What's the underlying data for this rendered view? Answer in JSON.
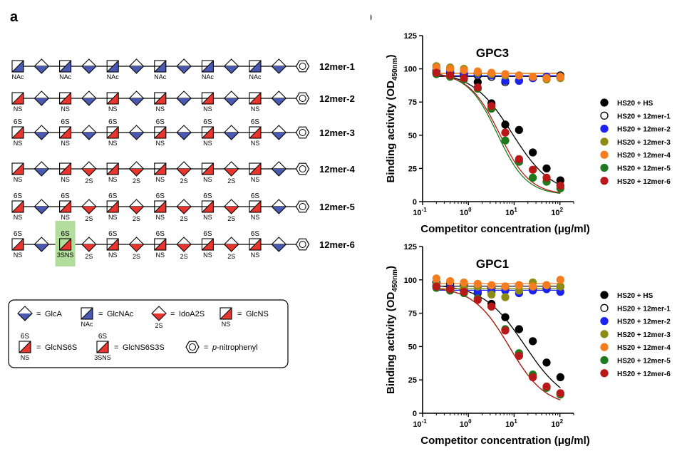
{
  "panels": {
    "a": "a",
    "b": "b"
  },
  "oligos": [
    {
      "label": "12mer-1",
      "residues": [
        {
          "t": "GlcNAc",
          "sub": "NAc"
        },
        {
          "t": "GlcA"
        },
        {
          "t": "GlcNAc",
          "sub": "NAc"
        },
        {
          "t": "GlcA"
        },
        {
          "t": "GlcNAc",
          "sub": "NAc"
        },
        {
          "t": "GlcA"
        },
        {
          "t": "GlcNAc",
          "sub": "NAc"
        },
        {
          "t": "GlcA"
        },
        {
          "t": "GlcNAc",
          "sub": "NAc"
        },
        {
          "t": "GlcA"
        },
        {
          "t": "GlcNAc",
          "sub": "NAc"
        },
        {
          "t": "GlcA"
        },
        {
          "t": "pNP"
        }
      ]
    },
    {
      "label": "12mer-2",
      "residues": [
        {
          "t": "GlcNS",
          "sub": "NS"
        },
        {
          "t": "GlcA"
        },
        {
          "t": "GlcNS",
          "sub": "NS"
        },
        {
          "t": "GlcA"
        },
        {
          "t": "GlcNS",
          "sub": "NS"
        },
        {
          "t": "GlcA"
        },
        {
          "t": "GlcNS",
          "sub": "NS"
        },
        {
          "t": "GlcA"
        },
        {
          "t": "GlcNS",
          "sub": "NS"
        },
        {
          "t": "GlcA"
        },
        {
          "t": "GlcNS",
          "sub": "NS"
        },
        {
          "t": "GlcA"
        },
        {
          "t": "pNP"
        }
      ]
    },
    {
      "label": "12mer-3",
      "residues": [
        {
          "t": "GlcNS",
          "sub": "NS",
          "sup": "6S"
        },
        {
          "t": "GlcA"
        },
        {
          "t": "GlcNS",
          "sub": "NS",
          "sup": "6S"
        },
        {
          "t": "GlcA"
        },
        {
          "t": "GlcNS",
          "sub": "NS",
          "sup": "6S"
        },
        {
          "t": "GlcA"
        },
        {
          "t": "GlcNS",
          "sub": "NS",
          "sup": "6S"
        },
        {
          "t": "GlcA"
        },
        {
          "t": "GlcNS",
          "sub": "NS",
          "sup": "6S"
        },
        {
          "t": "GlcA"
        },
        {
          "t": "GlcNS",
          "sub": "NS",
          "sup": "6S"
        },
        {
          "t": "GlcA"
        },
        {
          "t": "pNP"
        }
      ]
    },
    {
      "label": "12mer-4",
      "residues": [
        {
          "t": "GlcNS",
          "sub": "NS"
        },
        {
          "t": "GlcA"
        },
        {
          "t": "GlcNS",
          "sub": "NS"
        },
        {
          "t": "IdoA2S",
          "sub": "2S"
        },
        {
          "t": "GlcNS",
          "sub": "NS"
        },
        {
          "t": "IdoA2S",
          "sub": "2S"
        },
        {
          "t": "GlcNS",
          "sub": "NS"
        },
        {
          "t": "IdoA2S",
          "sub": "2S"
        },
        {
          "t": "GlcNS",
          "sub": "NS"
        },
        {
          "t": "IdoA2S",
          "sub": "2S"
        },
        {
          "t": "GlcNS",
          "sub": "NS"
        },
        {
          "t": "GlcA"
        },
        {
          "t": "pNP"
        }
      ]
    },
    {
      "label": "12mer-5",
      "residues": [
        {
          "t": "GlcNS",
          "sub": "NS",
          "sup": "6S"
        },
        {
          "t": "GlcA"
        },
        {
          "t": "GlcNS",
          "sub": "NS",
          "sup": "6S"
        },
        {
          "t": "IdoA2S",
          "sub": "2S"
        },
        {
          "t": "GlcNS",
          "sub": "NS",
          "sup": "6S"
        },
        {
          "t": "IdoA2S",
          "sub": "2S"
        },
        {
          "t": "GlcNS",
          "sub": "NS",
          "sup": "6S"
        },
        {
          "t": "IdoA2S",
          "sub": "2S"
        },
        {
          "t": "GlcNS",
          "sub": "NS",
          "sup": "6S"
        },
        {
          "t": "IdoA2S",
          "sub": "2S"
        },
        {
          "t": "GlcNS",
          "sub": "NS",
          "sup": "6S"
        },
        {
          "t": "GlcA"
        },
        {
          "t": "pNP"
        }
      ]
    },
    {
      "label": "12mer-6",
      "residues": [
        {
          "t": "GlcNS",
          "sub": "NS",
          "sup": "6S"
        },
        {
          "t": "GlcA"
        },
        {
          "t": "GlcNS",
          "sub": "3SNS",
          "sup": "6S",
          "highlight": true
        },
        {
          "t": "IdoA2S",
          "sub": "2S"
        },
        {
          "t": "GlcNS",
          "sub": "NS",
          "sup": "6S"
        },
        {
          "t": "IdoA2S",
          "sub": "2S"
        },
        {
          "t": "GlcNS",
          "sub": "NS",
          "sup": "6S"
        },
        {
          "t": "IdoA2S",
          "sub": "2S"
        },
        {
          "t": "GlcNS",
          "sub": "NS",
          "sup": "6S"
        },
        {
          "t": "IdoA2S",
          "sub": "2S"
        },
        {
          "t": "GlcNS",
          "sub": "NS",
          "sup": "6S"
        },
        {
          "t": "GlcA"
        },
        {
          "t": "pNP"
        }
      ]
    }
  ],
  "key": {
    "eq": "=",
    "items": [
      {
        "t": "GlcA",
        "label": "GlcA"
      },
      {
        "t": "GlcNAc",
        "sub": "NAc",
        "label": "GlcNAc"
      },
      {
        "t": "IdoA2S",
        "sub": "2S",
        "label": "IdoA2S"
      },
      {
        "t": "GlcNS",
        "sub": "NS",
        "label": "GlcNS"
      },
      {
        "t": "GlcNS",
        "sub": "NS",
        "sup": "6S",
        "label": "GlcNS6S"
      },
      {
        "t": "GlcNS",
        "sub": "3SNS",
        "sup": "6S",
        "label": "GlcNS6S3S"
      },
      {
        "t": "pNP",
        "label_prefix": "p",
        "label_rest": "-nitrophenyl"
      }
    ]
  },
  "colors": {
    "blue": "#4a5ab3",
    "red": "#e8352e",
    "highlight": "#b2dd9c"
  },
  "chart_data": [
    {
      "type": "scatter",
      "title": "GPC3",
      "xlabel": "Competitor concentration (μg/ml)",
      "ylabel_main": "Binding activity (OD",
      "ylabel_sub": "450nm",
      "ylabel_end": ")",
      "xscale": "log",
      "xlim": [
        0.1,
        200
      ],
      "ylim": [
        0,
        125
      ],
      "yticks": [
        0,
        25,
        50,
        75,
        100,
        125
      ],
      "xticks": [
        {
          "v": 0.1,
          "base": "10",
          "exp": "-1"
        },
        {
          "v": 1,
          "base": "10",
          "exp": "0"
        },
        {
          "v": 10,
          "base": "10",
          "exp": "1"
        },
        {
          "v": 100,
          "base": "10",
          "exp": "2"
        }
      ],
      "legend_position": "right",
      "series": [
        {
          "name": "HS20 + HS",
          "color": "#000000",
          "fill": true,
          "x": [
            0.2,
            0.4,
            0.8,
            1.6,
            3.2,
            6.4,
            12.8,
            25.6,
            51.2,
            102.4
          ],
          "y": [
            97,
            97,
            96,
            90,
            74,
            58,
            54,
            37,
            25,
            16
          ]
        },
        {
          "name": "HS20 + 12mer-1",
          "color": "#000000",
          "fill": false,
          "x": [
            0.2,
            0.4,
            0.8,
            1.6,
            3.2,
            6.4,
            12.8,
            25.6,
            51.2,
            102.4
          ],
          "y": [
            98,
            97,
            96,
            95,
            94,
            90,
            91,
            93,
            94,
            95
          ]
        },
        {
          "name": "HS20 + 12mer-2",
          "color": "#1b22f2",
          "fill": true,
          "x": [
            0.2,
            0.4,
            0.8,
            1.6,
            3.2,
            6.4,
            12.8,
            25.6,
            51.2,
            102.4
          ],
          "y": [
            99,
            98,
            97,
            96,
            95,
            91,
            91,
            93,
            94,
            94
          ]
        },
        {
          "name": "HS20 + 12mer-3",
          "color": "#8c8c14",
          "fill": true,
          "x": [
            0.2,
            0.4,
            0.8,
            1.6,
            3.2,
            6.4,
            12.8,
            25.6,
            51.2,
            102.4
          ],
          "y": [
            102,
            101,
            100,
            97,
            96,
            95,
            95,
            94,
            92,
            93
          ]
        },
        {
          "name": "HS20 + 12mer-4",
          "color": "#f57c1f",
          "fill": true,
          "x": [
            0.2,
            0.4,
            0.8,
            1.6,
            3.2,
            6.4,
            12.8,
            25.6,
            51.2,
            102.4
          ],
          "y": [
            101,
            100,
            99,
            98,
            97,
            96,
            95,
            94,
            93,
            94
          ]
        },
        {
          "name": "HS20 + 12mer-5",
          "color": "#1e7a1e",
          "fill": true,
          "x": [
            0.2,
            0.4,
            0.8,
            1.6,
            3.2,
            6.4,
            12.8,
            25.6,
            51.2,
            102.4
          ],
          "y": [
            96,
            94,
            92,
            85,
            70,
            46,
            30,
            18,
            15,
            10
          ]
        },
        {
          "name": "HS20 + 12mer-6",
          "color": "#b81818",
          "fill": true,
          "x": [
            0.2,
            0.4,
            0.8,
            1.6,
            3.2,
            6.4,
            12.8,
            25.6,
            51.2,
            102.4
          ],
          "y": [
            97,
            95,
            93,
            86,
            72,
            52,
            32,
            24,
            18,
            12
          ]
        }
      ]
    },
    {
      "type": "scatter",
      "title": "GPC1",
      "xlabel": "Competitor concentration (μg/ml)",
      "ylabel_main": "Binding activity (OD",
      "ylabel_sub": "450nm",
      "ylabel_end": ")",
      "xscale": "log",
      "xlim": [
        0.1,
        200
      ],
      "ylim": [
        0,
        125
      ],
      "yticks": [
        0,
        25,
        50,
        75,
        100,
        125
      ],
      "xticks": [
        {
          "v": 0.1,
          "base": "10",
          "exp": "-1"
        },
        {
          "v": 1,
          "base": "10",
          "exp": "0"
        },
        {
          "v": 10,
          "base": "10",
          "exp": "1"
        },
        {
          "v": 100,
          "base": "10",
          "exp": "2"
        }
      ],
      "legend_position": "right",
      "series": [
        {
          "name": "HS20 + HS",
          "color": "#000000",
          "fill": true,
          "x": [
            0.2,
            0.4,
            0.8,
            1.6,
            3.2,
            6.4,
            12.8,
            25.6,
            51.2,
            102.4
          ],
          "y": [
            96,
            95,
            93,
            90,
            82,
            72,
            63,
            54,
            38,
            27
          ]
        },
        {
          "name": "HS20 + 12mer-1",
          "color": "#000000",
          "fill": false,
          "x": [
            0.2,
            0.4,
            0.8,
            1.6,
            3.2,
            6.4,
            12.8,
            25.6,
            51.2,
            102.4
          ],
          "y": [
            98,
            97,
            96,
            95,
            94,
            95,
            96,
            93,
            94,
            95
          ]
        },
        {
          "name": "HS20 + 12mer-2",
          "color": "#1b22f2",
          "fill": true,
          "x": [
            0.2,
            0.4,
            0.8,
            1.6,
            3.2,
            6.4,
            12.8,
            25.6,
            51.2,
            102.4
          ],
          "y": [
            95,
            94,
            93,
            91,
            91,
            92,
            90,
            92,
            93,
            91
          ]
        },
        {
          "name": "HS20 + 12mer-3",
          "color": "#8c8c14",
          "fill": true,
          "x": [
            0.2,
            0.4,
            0.8,
            1.6,
            3.2,
            6.4,
            12.8,
            25.6,
            51.2,
            102.4
          ],
          "y": [
            96,
            92,
            94,
            95,
            89,
            87,
            92,
            98,
            96,
            95
          ]
        },
        {
          "name": "HS20 + 12mer-4",
          "color": "#f57c1f",
          "fill": true,
          "x": [
            0.2,
            0.4,
            0.8,
            1.6,
            3.2,
            6.4,
            12.8,
            25.6,
            51.2,
            102.4
          ],
          "y": [
            101,
            99,
            98,
            97,
            96,
            95,
            96,
            95,
            96,
            100
          ]
        },
        {
          "name": "HS20 + 12mer-5",
          "color": "#1e7a1e",
          "fill": true,
          "x": [
            0.2,
            0.4,
            0.8,
            1.6,
            3.2,
            6.4,
            12.8,
            25.6,
            51.2,
            102.4
          ],
          "y": [
            94,
            92,
            90,
            86,
            80,
            63,
            45,
            29,
            19,
            14
          ]
        },
        {
          "name": "HS20 + 12mer-6",
          "color": "#b81818",
          "fill": true,
          "x": [
            0.2,
            0.4,
            0.8,
            1.6,
            3.2,
            6.4,
            12.8,
            25.6,
            51.2,
            102.4
          ],
          "y": [
            95,
            93,
            91,
            85,
            80,
            62,
            43,
            27,
            20,
            15
          ]
        }
      ]
    }
  ]
}
